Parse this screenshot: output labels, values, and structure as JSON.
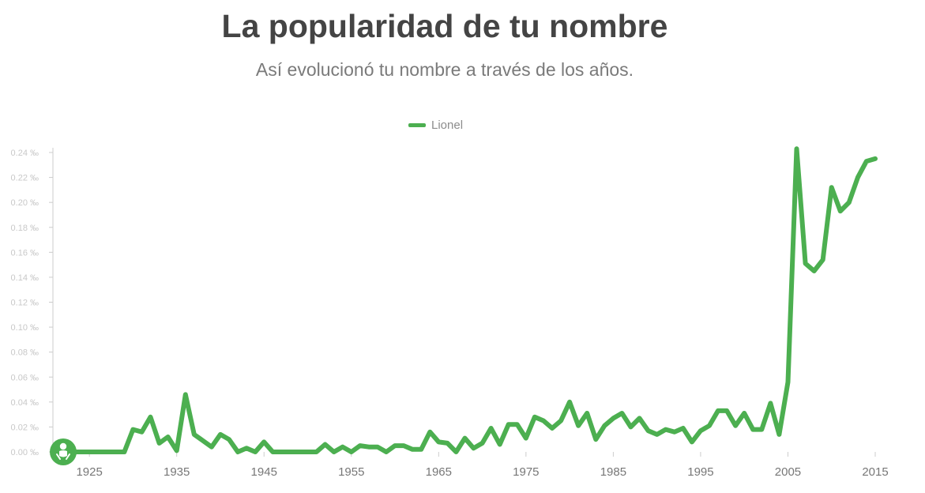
{
  "header": {
    "title": "La popularidad de tu nombre",
    "subtitle": "Así evolucionó tu nombre a través de los años."
  },
  "colors": {
    "series": "#4caf50",
    "axis": "#cccccc",
    "ytick_text": "#c8c8c8",
    "xtick_text": "#777777",
    "marker": "#4caf50"
  },
  "marker": {
    "icon": "baby-icon"
  },
  "chart_data": {
    "type": "line",
    "title": "",
    "xlabel": "",
    "ylabel": "",
    "ylim": [
      0,
      0.24
    ],
    "xlim": [
      1922,
      2015
    ],
    "y_ticks": [
      "0.00 ‰",
      "0.02 ‰",
      "0.04 ‰",
      "0.06 ‰",
      "0.08 ‰",
      "0.10 ‰",
      "0.12 ‰",
      "0.14 ‰",
      "0.16 ‰",
      "0.18 ‰",
      "0.20 ‰",
      "0.22 ‰",
      "0.24 ‰"
    ],
    "y_tick_values": [
      0,
      0.02,
      0.04,
      0.06,
      0.08,
      0.1,
      0.12,
      0.14,
      0.16,
      0.18,
      0.2,
      0.22,
      0.24
    ],
    "x_ticks": [
      "1925",
      "1935",
      "1945",
      "1955",
      "1965",
      "1975",
      "1985",
      "1995",
      "2005",
      "2015"
    ],
    "x_tick_values": [
      1925,
      1935,
      1945,
      1955,
      1965,
      1975,
      1985,
      1995,
      2005,
      2015
    ],
    "grid": false,
    "legend": "top-center",
    "series": [
      {
        "name": "Lionel",
        "x": [
          1922,
          1923,
          1924,
          1925,
          1926,
          1927,
          1928,
          1929,
          1930,
          1931,
          1932,
          1933,
          1934,
          1935,
          1936,
          1937,
          1938,
          1939,
          1940,
          1941,
          1942,
          1943,
          1944,
          1945,
          1946,
          1947,
          1948,
          1949,
          1950,
          1951,
          1952,
          1953,
          1954,
          1955,
          1956,
          1957,
          1958,
          1959,
          1960,
          1961,
          1962,
          1963,
          1964,
          1965,
          1966,
          1967,
          1968,
          1969,
          1970,
          1971,
          1972,
          1973,
          1974,
          1975,
          1976,
          1977,
          1978,
          1979,
          1980,
          1981,
          1982,
          1983,
          1984,
          1985,
          1986,
          1987,
          1988,
          1989,
          1990,
          1991,
          1992,
          1993,
          1994,
          1995,
          1996,
          1997,
          1998,
          1999,
          2000,
          2001,
          2002,
          2003,
          2004,
          2005,
          2006,
          2007,
          2008,
          2009,
          2010,
          2011,
          2012,
          2013,
          2014,
          2015
        ],
        "values": [
          0,
          0,
          0,
          0,
          0,
          0,
          0,
          0,
          0.018,
          0.016,
          0.028,
          0.007,
          0.012,
          0.001,
          0.046,
          0.014,
          0.009,
          0.004,
          0.014,
          0.01,
          0,
          0.003,
          0,
          0.008,
          0,
          0,
          0,
          0,
          0,
          0,
          0.006,
          0,
          0.004,
          0,
          0.005,
          0.004,
          0.004,
          0,
          0.005,
          0.005,
          0.002,
          0.002,
          0.016,
          0.008,
          0.007,
          0,
          0.011,
          0.003,
          0.007,
          0.019,
          0.006,
          0.022,
          0.022,
          0.011,
          0.028,
          0.025,
          0.019,
          0.025,
          0.04,
          0.021,
          0.031,
          0.01,
          0.021,
          0.027,
          0.031,
          0.02,
          0.027,
          0.017,
          0.014,
          0.018,
          0.016,
          0.019,
          0.008,
          0.017,
          0.021,
          0.033,
          0.033,
          0.021,
          0.031,
          0.018,
          0.018,
          0.039,
          0.014,
          0.056,
          0.243,
          0.151,
          0.145,
          0.154,
          0.212,
          0.193,
          0.2,
          0.22,
          0.233,
          0.235
        ]
      }
    ]
  }
}
